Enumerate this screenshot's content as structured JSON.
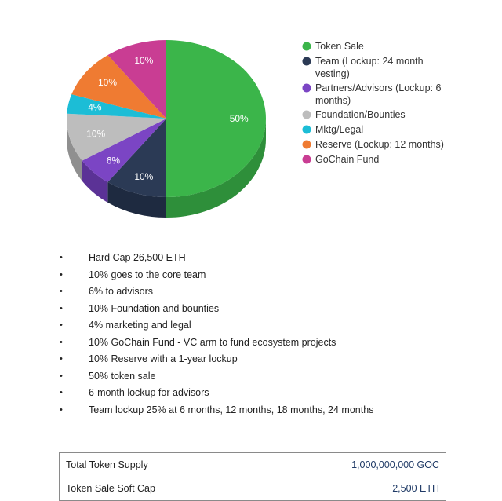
{
  "chart_data": {
    "type": "pie",
    "slices": [
      {
        "name": "Token Sale",
        "value": 50,
        "label": "50%",
        "color": "#3bb54a",
        "side": "#2e8f3a"
      },
      {
        "name": "Team (Lockup: 24 month vesting)",
        "value": 10,
        "label": "10%",
        "color": "#2b3a55",
        "side": "#1e2a40"
      },
      {
        "name": "Partners/Advisors (Lockup: 6 months)",
        "value": 6,
        "label": "6%",
        "color": "#7b45c4",
        "side": "#5b3296"
      },
      {
        "name": "Foundation/Bounties",
        "value": 10,
        "label": "10%",
        "color": "#bdbdbd",
        "side": "#8f8f8f"
      },
      {
        "name": "Mktg/Legal",
        "value": 4,
        "label": "4%",
        "color": "#1cbdd6",
        "side": "#1592a6"
      },
      {
        "name": "Reserve (Lockup: 12 months)",
        "value": 10,
        "label": "10%",
        "color": "#ef7b32",
        "side": "#bf6226"
      },
      {
        "name": "GoChain Fund",
        "value": 10,
        "label": "10%",
        "color": "#c93d93",
        "side": "#9c2f72"
      }
    ],
    "legend": [
      {
        "lines": [
          "Token Sale"
        ],
        "color": "#3bb54a"
      },
      {
        "lines": [
          "Team (Lockup: 24 month",
          "vesting)"
        ],
        "color": "#2b3a55"
      },
      {
        "lines": [
          "Partners/Advisors (Lockup: 6",
          "months)"
        ],
        "color": "#7b45c4"
      },
      {
        "lines": [
          "Foundation/Bounties"
        ],
        "color": "#bdbdbd"
      },
      {
        "lines": [
          "Mktg/Legal"
        ],
        "color": "#1cbdd6"
      },
      {
        "lines": [
          "Reserve (Lockup: 12 months)"
        ],
        "color": "#ef7b32"
      },
      {
        "lines": [
          "GoChain Fund"
        ],
        "color": "#c93d93"
      }
    ],
    "legend_position": "right"
  },
  "bullets": [
    "Hard Cap 26,500 ETH",
    "10% goes to the core team",
    "6% to advisors",
    "10% Foundation and bounties",
    "4% marketing and legal",
    "10% GoChain Fund - VC arm to fund ecosystem projects",
    "10% Reserve with a 1-year lockup",
    "50% token sale",
    "6-month lockup for advisors",
    "Team lockup 25% at 6 months, 12 months, 18 months, 24 months"
  ],
  "bullet_symbol": "•",
  "table": {
    "rows": [
      {
        "label": "Total Token Supply",
        "value": "1,000,000,000 GOC"
      },
      {
        "label": "Token Sale Soft Cap",
        "value": "2,500 ETH"
      }
    ]
  }
}
